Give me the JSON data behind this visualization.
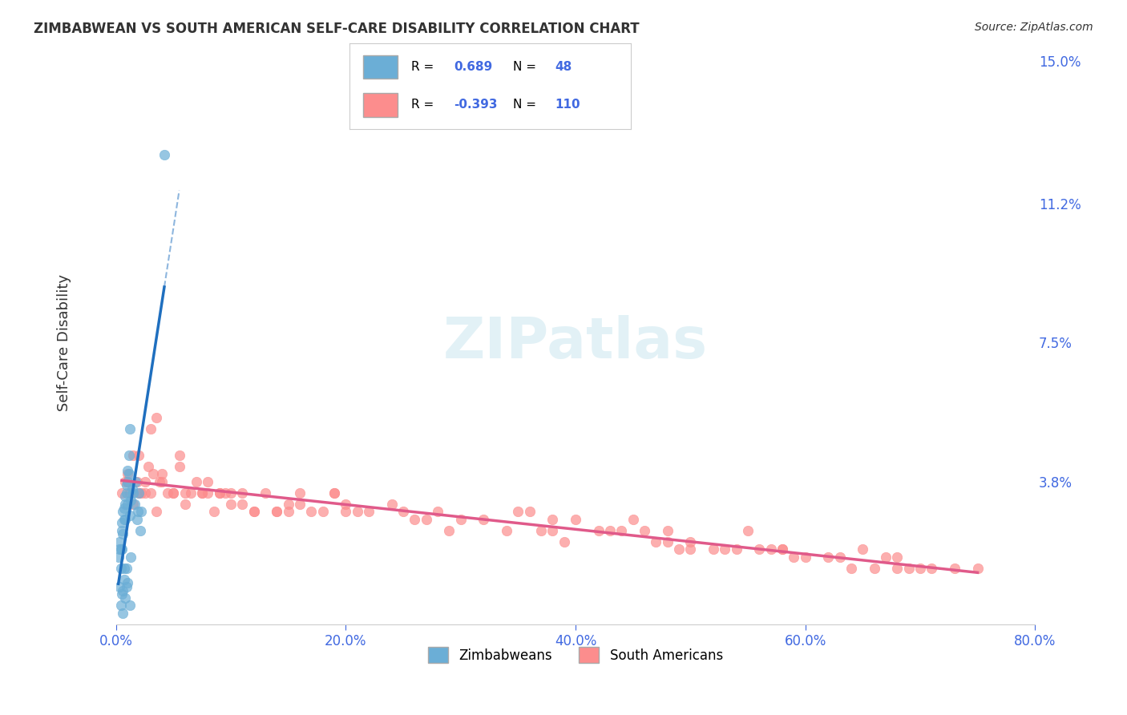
{
  "title": "ZIMBABWEAN VS SOUTH AMERICAN SELF-CARE DISABILITY CORRELATION CHART",
  "source": "Source: ZipAtlas.com",
  "xlabel_bottom": "",
  "ylabel": "Self-Care Disability",
  "x_min": 0.0,
  "x_max": 80.0,
  "y_min": 0.0,
  "y_max": 15.0,
  "x_ticks": [
    0.0,
    20.0,
    40.0,
    60.0,
    80.0
  ],
  "y_ticks": [
    0.0,
    3.8,
    7.5,
    11.2,
    15.0
  ],
  "y_tick_labels": [
    "",
    "3.8%",
    "7.5%",
    "11.2%",
    "15.0%"
  ],
  "x_tick_labels": [
    "0.0%",
    "20.0%",
    "40.0%",
    "60.0%",
    "80.0%"
  ],
  "legend_r1": "R =  0.689   N =  48",
  "legend_r2": "R = -0.393   N = 110",
  "blue_color": "#6baed6",
  "pink_color": "#fc8d8d",
  "blue_line_color": "#1f6fbf",
  "pink_line_color": "#e05a8a",
  "blue_R": 0.689,
  "blue_N": 48,
  "pink_R": -0.393,
  "pink_N": 110,
  "watermark": "ZIPatlas",
  "background_color": "#ffffff",
  "grid_color": "#cccccc",
  "zimbabwean_x": [
    0.3,
    0.4,
    0.5,
    0.6,
    0.7,
    0.8,
    0.9,
    1.0,
    1.1,
    1.2,
    1.5,
    1.6,
    1.7,
    1.8,
    1.9,
    2.0,
    2.1,
    2.2,
    0.2,
    0.3,
    0.5,
    0.7,
    0.8,
    0.9,
    1.0,
    1.1,
    1.2,
    1.3,
    1.4,
    0.4,
    0.6,
    0.8,
    1.0,
    1.2,
    0.3,
    0.5,
    0.7,
    0.9,
    0.6,
    0.8,
    1.0,
    1.3,
    0.4,
    0.6,
    4.2,
    0.5,
    0.7,
    0.9
  ],
  "zimbabwean_y": [
    2.0,
    1.5,
    2.5,
    3.0,
    2.8,
    3.2,
    3.5,
    3.8,
    4.0,
    5.2,
    3.5,
    3.2,
    3.8,
    2.8,
    3.0,
    3.5,
    2.5,
    3.0,
    1.8,
    2.2,
    2.7,
    3.1,
    3.4,
    3.7,
    4.1,
    4.5,
    2.9,
    3.3,
    3.6,
    2.0,
    2.4,
    2.8,
    3.2,
    0.5,
    1.0,
    0.8,
    1.2,
    1.5,
    0.3,
    0.7,
    1.1,
    1.8,
    0.5,
    0.9,
    12.5,
    2.0,
    1.5,
    1.0
  ],
  "south_american_x": [
    0.5,
    0.8,
    1.0,
    1.2,
    1.5,
    1.8,
    2.0,
    2.2,
    2.5,
    2.8,
    3.0,
    3.2,
    3.5,
    3.8,
    4.0,
    4.5,
    5.0,
    5.5,
    6.0,
    6.5,
    7.0,
    7.5,
    8.0,
    8.5,
    9.0,
    9.5,
    10.0,
    11.0,
    12.0,
    13.0,
    14.0,
    15.0,
    16.0,
    17.0,
    18.0,
    19.0,
    20.0,
    22.0,
    24.0,
    26.0,
    28.0,
    30.0,
    32.0,
    34.0,
    36.0,
    38.0,
    40.0,
    42.0,
    44.0,
    46.0,
    48.0,
    50.0,
    52.0,
    54.0,
    56.0,
    58.0,
    60.0,
    62.0,
    64.0,
    66.0,
    68.0,
    70.0,
    2.5,
    3.5,
    5.5,
    7.5,
    10.0,
    14.0,
    19.0,
    25.0,
    35.0,
    45.0,
    55.0,
    65.0,
    1.0,
    2.0,
    4.0,
    6.0,
    9.0,
    12.0,
    16.0,
    21.0,
    29.0,
    39.0,
    49.0,
    59.0,
    69.0,
    1.5,
    3.0,
    5.0,
    8.0,
    11.0,
    15.0,
    20.0,
    27.0,
    37.0,
    47.0,
    57.0,
    67.0,
    75.0,
    50.0,
    63.0,
    71.0,
    48.0,
    53.0,
    38.0,
    43.0,
    58.0,
    68.0,
    73.0
  ],
  "south_american_y": [
    3.5,
    3.8,
    4.0,
    3.5,
    3.2,
    3.8,
    4.5,
    3.5,
    3.8,
    4.2,
    3.5,
    4.0,
    5.5,
    3.8,
    4.0,
    3.5,
    3.5,
    4.5,
    3.2,
    3.5,
    3.8,
    3.5,
    3.5,
    3.0,
    3.5,
    3.5,
    3.2,
    3.5,
    3.0,
    3.5,
    3.0,
    3.2,
    3.5,
    3.0,
    3.0,
    3.5,
    3.0,
    3.0,
    3.2,
    2.8,
    3.0,
    2.8,
    2.8,
    2.5,
    3.0,
    2.5,
    2.8,
    2.5,
    2.5,
    2.5,
    2.2,
    2.2,
    2.0,
    2.0,
    2.0,
    2.0,
    1.8,
    1.8,
    1.5,
    1.5,
    1.5,
    1.5,
    3.5,
    3.0,
    4.2,
    3.5,
    3.5,
    3.0,
    3.5,
    3.0,
    3.0,
    2.8,
    2.5,
    2.0,
    3.8,
    3.5,
    3.8,
    3.5,
    3.5,
    3.0,
    3.2,
    3.0,
    2.5,
    2.2,
    2.0,
    1.8,
    1.5,
    4.5,
    5.2,
    3.5,
    3.8,
    3.2,
    3.0,
    3.2,
    2.8,
    2.5,
    2.2,
    2.0,
    1.8,
    1.5,
    2.0,
    1.8,
    1.5,
    2.5,
    2.0,
    2.8,
    2.5,
    2.0,
    1.8,
    1.5
  ]
}
